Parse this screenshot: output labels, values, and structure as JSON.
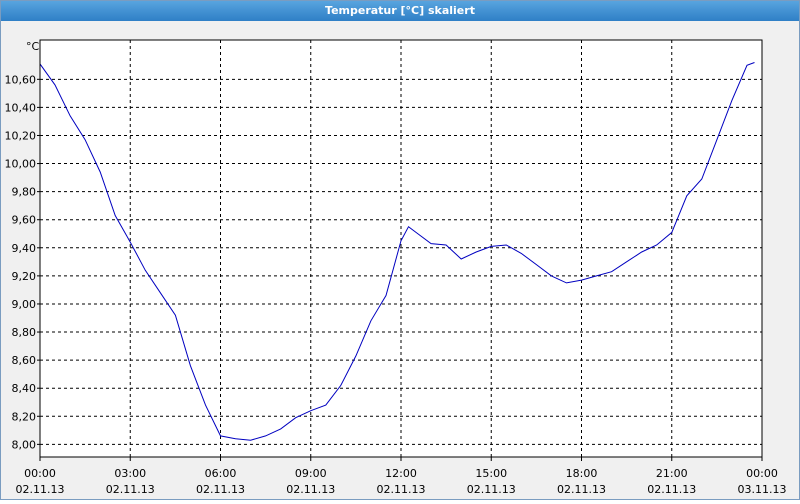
{
  "window_title": "Temperatur [°C] skaliert",
  "chart_data": {
    "type": "line",
    "y_unit": "°C",
    "x": [
      "2013-11-02T00:00",
      "2013-11-02T00:30",
      "2013-11-02T01:00",
      "2013-11-02T01:30",
      "2013-11-02T02:00",
      "2013-11-02T02:30",
      "2013-11-02T03:00",
      "2013-11-02T03:30",
      "2013-11-02T04:00",
      "2013-11-02T04:30",
      "2013-11-02T05:00",
      "2013-11-02T05:30",
      "2013-11-02T06:00",
      "2013-11-02T06:30",
      "2013-11-02T07:00",
      "2013-11-02T07:30",
      "2013-11-02T08:00",
      "2013-11-02T08:30",
      "2013-11-02T09:00",
      "2013-11-02T09:30",
      "2013-11-02T10:00",
      "2013-11-02T10:30",
      "2013-11-02T11:00",
      "2013-11-02T11:30",
      "2013-11-02T12:00",
      "2013-11-02T12:15",
      "2013-11-02T12:30",
      "2013-11-02T13:00",
      "2013-11-02T13:30",
      "2013-11-02T14:00",
      "2013-11-02T14:30",
      "2013-11-02T15:00",
      "2013-11-02T15:30",
      "2013-11-02T16:00",
      "2013-11-02T16:30",
      "2013-11-02T17:00",
      "2013-11-02T17:30",
      "2013-11-02T18:00",
      "2013-11-02T18:30",
      "2013-11-02T19:00",
      "2013-11-02T19:30",
      "2013-11-02T20:00",
      "2013-11-02T20:30",
      "2013-11-02T21:00",
      "2013-11-02T21:30",
      "2013-11-02T22:00",
      "2013-11-02T22:30",
      "2013-11-02T23:00",
      "2013-11-02T23:30",
      "2013-11-02T23:45"
    ],
    "series": [
      {
        "color": "#0000c0",
        "values": [
          10.71,
          10.56,
          10.34,
          10.17,
          9.94,
          9.63,
          9.44,
          9.24,
          9.08,
          8.92,
          8.56,
          8.28,
          8.06,
          8.04,
          8.03,
          8.06,
          8.11,
          8.19,
          8.24,
          8.28,
          8.42,
          8.63,
          8.88,
          9.06,
          9.45,
          9.55,
          9.51,
          9.43,
          9.42,
          9.32,
          9.37,
          9.41,
          9.42,
          9.36,
          9.28,
          9.2,
          9.15,
          9.17,
          9.2,
          9.23,
          9.3,
          9.37,
          9.42,
          9.51,
          9.77,
          9.89,
          10.17,
          10.45,
          10.7,
          10.72
        ]
      }
    ],
    "xlim": [
      "2013-11-02T00:00",
      "2013-11-03T00:00"
    ],
    "xticks": [
      {
        "value": "2013-11-02T00:00",
        "label": [
          "00:00",
          "02.11.13"
        ]
      },
      {
        "value": "2013-11-02T03:00",
        "label": [
          "03:00",
          "02.11.13"
        ]
      },
      {
        "value": "2013-11-02T06:00",
        "label": [
          "06:00",
          "02.11.13"
        ]
      },
      {
        "value": "2013-11-02T09:00",
        "label": [
          "09:00",
          "02.11.13"
        ]
      },
      {
        "value": "2013-11-02T12:00",
        "label": [
          "12:00",
          "02.11.13"
        ]
      },
      {
        "value": "2013-11-02T15:00",
        "label": [
          "15:00",
          "02.11.13"
        ]
      },
      {
        "value": "2013-11-02T18:00",
        "label": [
          "18:00",
          "02.11.13"
        ]
      },
      {
        "value": "2013-11-02T21:00",
        "label": [
          "21:00",
          "02.11.13"
        ]
      },
      {
        "value": "2013-11-03T00:00",
        "label": [
          "00:00",
          "03.11.13"
        ]
      }
    ],
    "ylim": [
      7.91,
      10.88
    ],
    "yticks": [
      {
        "value": 8,
        "label": "8,00"
      },
      {
        "value": 8.2,
        "label": "8,20"
      },
      {
        "value": 8.4,
        "label": "8,40"
      },
      {
        "value": 8.6,
        "label": "8,60"
      },
      {
        "value": 8.8,
        "label": "8,80"
      },
      {
        "value": 9,
        "label": "9,00"
      },
      {
        "value": 9.2,
        "label": "9,20"
      },
      {
        "value": 9.4,
        "label": "9,40"
      },
      {
        "value": 9.6,
        "label": "9,60"
      },
      {
        "value": 9.8,
        "label": "9,80"
      },
      {
        "value": 10,
        "label": "10,00"
      },
      {
        "value": 10.2,
        "label": "10,20"
      },
      {
        "value": 10.4,
        "label": "10,40"
      },
      {
        "value": 10.6,
        "label": "10,60"
      }
    ],
    "grid": true
  }
}
